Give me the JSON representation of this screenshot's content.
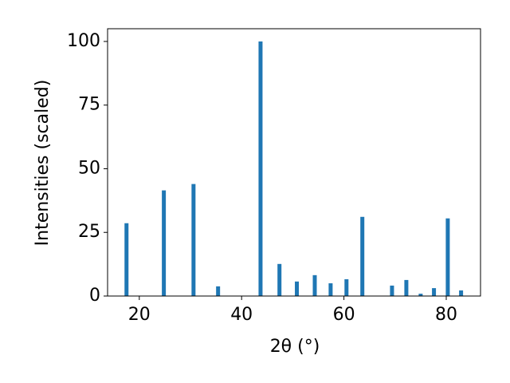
{
  "chart_data": {
    "type": "bar",
    "x_label": "2θ (°)",
    "y_label": "Intensities (scaled)",
    "x": [
      17.5,
      24.8,
      30.6,
      35.4,
      43.7,
      47.4,
      50.8,
      54.3,
      57.4,
      60.5,
      63.6,
      69.4,
      72.2,
      75.0,
      77.6,
      80.3,
      82.9
    ],
    "values": [
      28.6,
      41.5,
      44.0,
      3.8,
      100,
      12.6,
      5.7,
      8.2,
      5.0,
      6.6,
      31.1,
      4.1,
      6.3,
      0.9,
      3.1,
      30.5,
      2.2
    ],
    "color": "#1f77b4",
    "xlim": [
      13.8,
      86.7
    ],
    "xticks": [
      20,
      40,
      60,
      80
    ],
    "ylim": [
      0,
      105
    ],
    "yticks": [
      0,
      25,
      50,
      75,
      100
    ],
    "grid": false
  }
}
